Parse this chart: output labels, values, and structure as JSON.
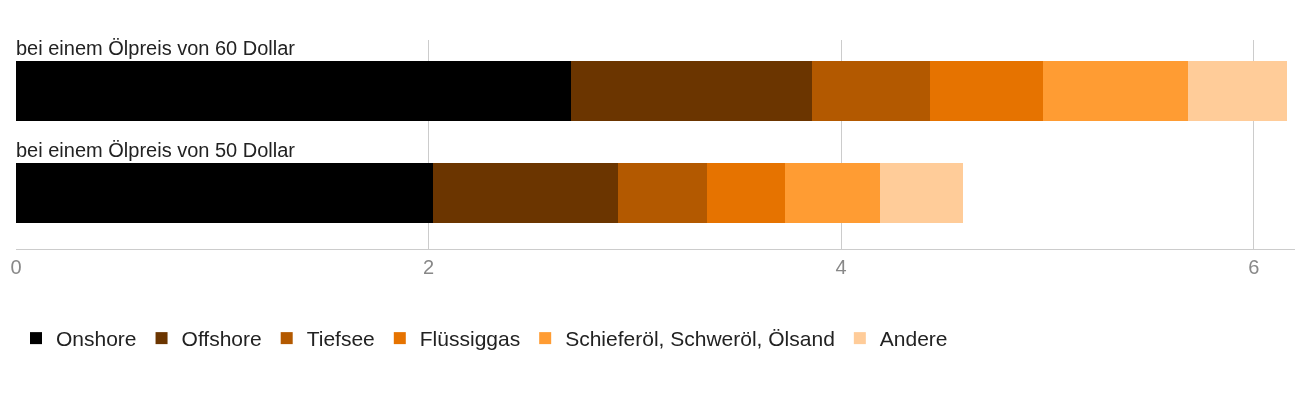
{
  "chart_data": {
    "type": "bar",
    "orientation": "horizontal",
    "stacked": true,
    "categories": [
      "bei einem Ölpreis von 60 Dollar",
      "bei einem Ölpreis von 50 Dollar"
    ],
    "series": [
      {
        "name": "Onshore",
        "color": "#000000",
        "values": [
          2.69,
          2.02
        ]
      },
      {
        "name": "Offshore",
        "color": "#6b3500",
        "values": [
          1.17,
          0.9
        ]
      },
      {
        "name": "Tiefsee",
        "color": "#b35900",
        "values": [
          0.57,
          0.43
        ]
      },
      {
        "name": "Flüssiggas",
        "color": "#e67300",
        "values": [
          0.55,
          0.38
        ]
      },
      {
        "name": "Schieferöl, Schweröl, Ölsand",
        "color": "#ff9c33",
        "values": [
          0.7,
          0.46
        ]
      },
      {
        "name": "Andere",
        "color": "#ffcc99",
        "values": [
          0.48,
          0.4
        ]
      }
    ],
    "xlim": [
      0,
      6.2
    ],
    "xticks": [
      0,
      2,
      4,
      6
    ],
    "grid": "x",
    "legend": "bottom",
    "tick_labels": "x"
  }
}
